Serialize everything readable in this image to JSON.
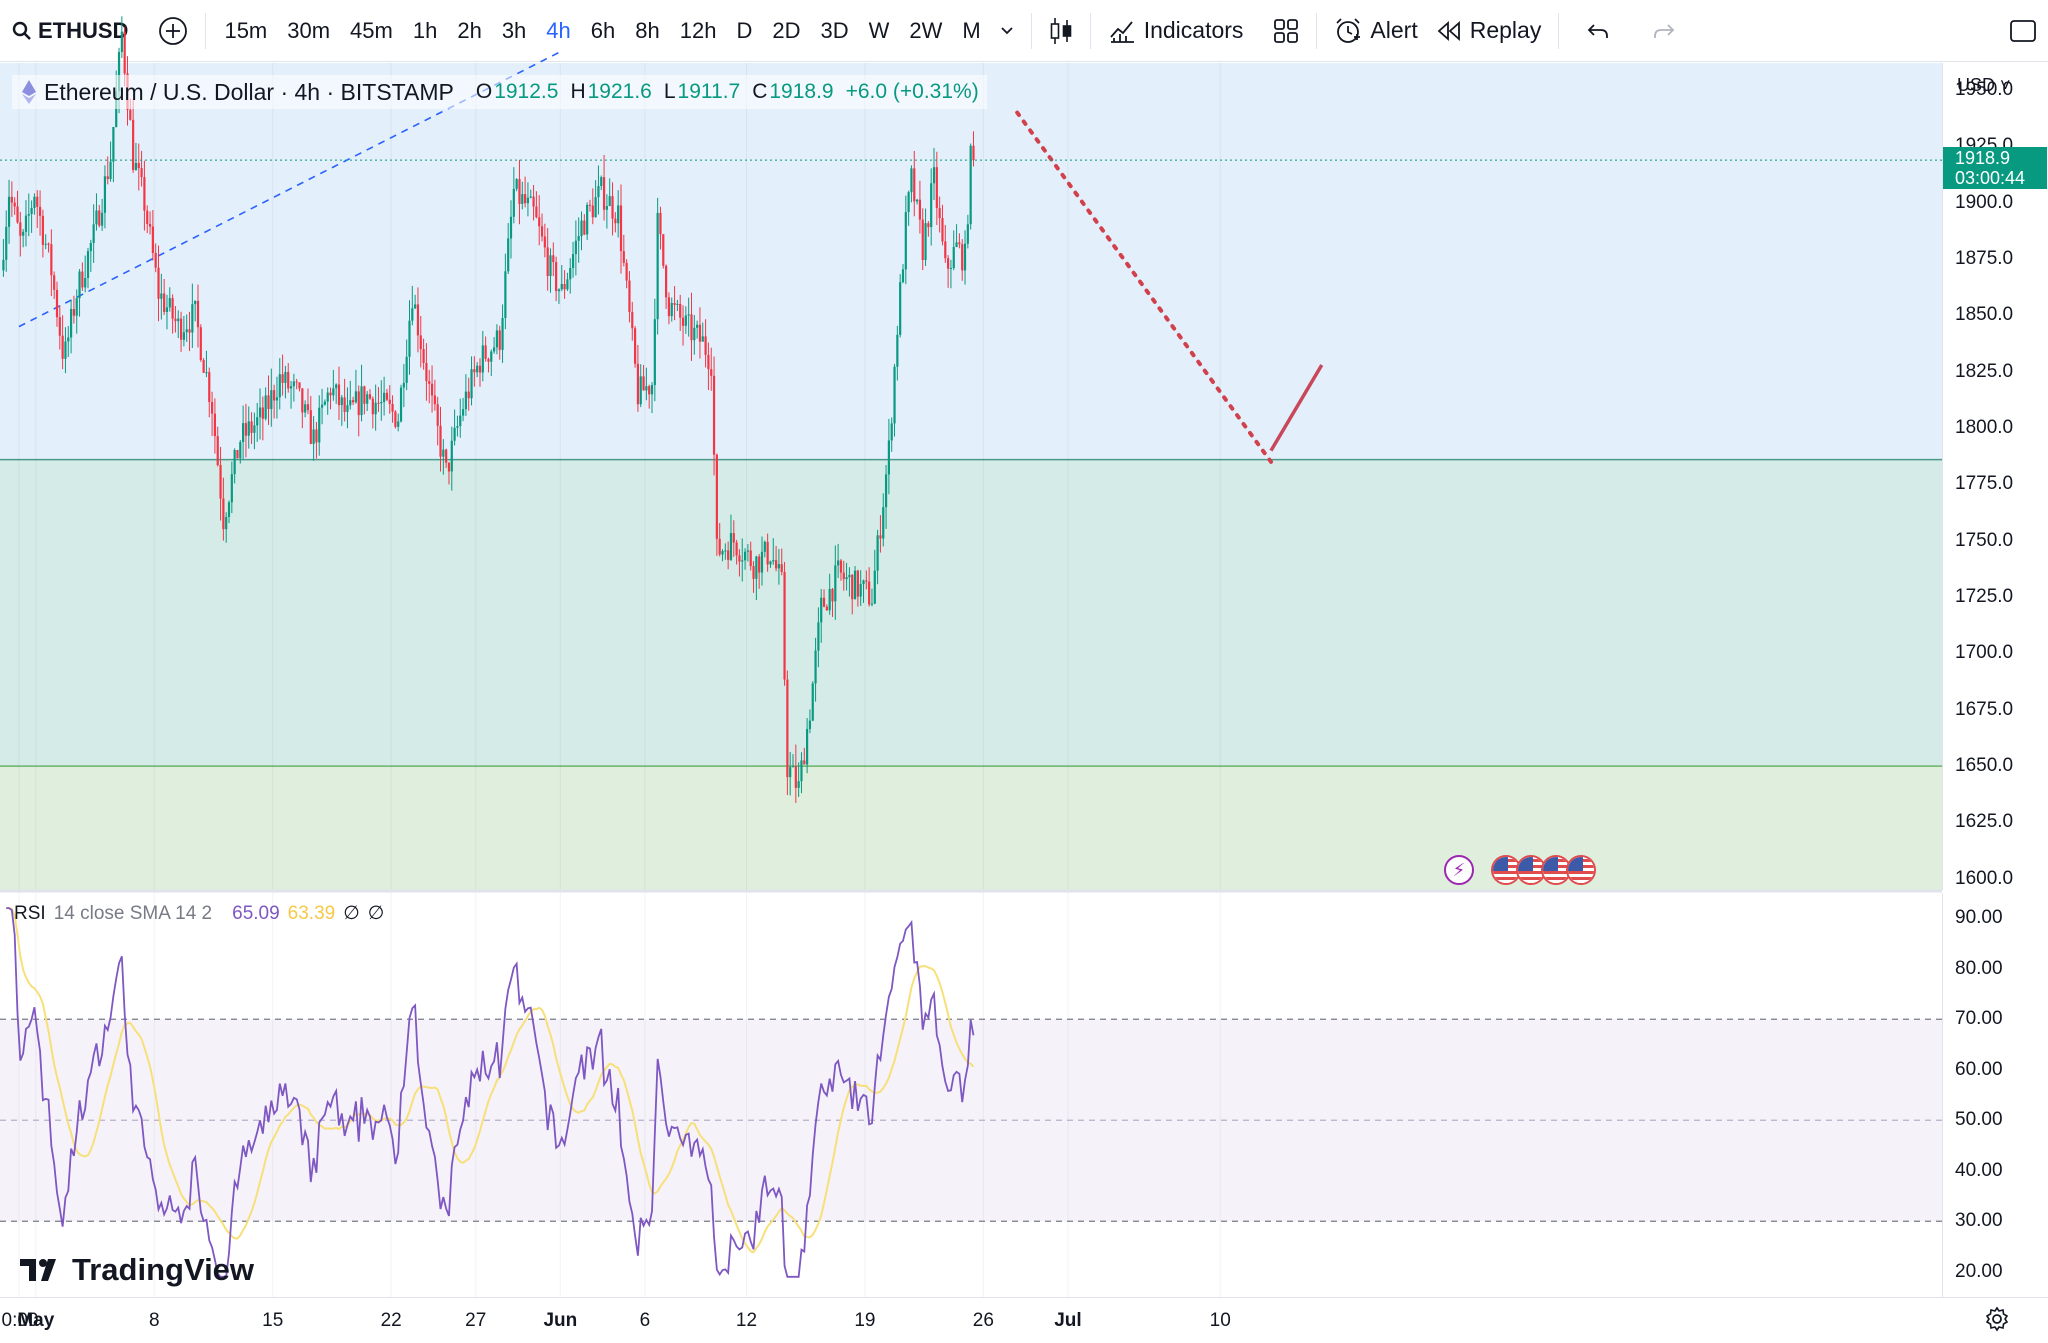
{
  "toolbar": {
    "symbol": "ETHUSD",
    "intervals": [
      {
        "label": "15m",
        "active": false
      },
      {
        "label": "30m",
        "active": false
      },
      {
        "label": "45m",
        "active": false
      },
      {
        "label": "1h",
        "active": false
      },
      {
        "label": "2h",
        "active": false
      },
      {
        "label": "3h",
        "active": false
      },
      {
        "label": "4h",
        "active": true
      },
      {
        "label": "6h",
        "active": false
      },
      {
        "label": "8h",
        "active": false
      },
      {
        "label": "12h",
        "active": false
      },
      {
        "label": "D",
        "active": false
      },
      {
        "label": "2D",
        "active": false
      },
      {
        "label": "3D",
        "active": false
      },
      {
        "label": "W",
        "active": false
      },
      {
        "label": "2W",
        "active": false
      },
      {
        "label": "M",
        "active": false
      }
    ],
    "indicators_label": "Indicators",
    "alert_label": "Alert",
    "replay_label": "Replay"
  },
  "legend": {
    "title": "Ethereum / U.S. Dollar · 4h · BITSTAMP",
    "open_key": "O",
    "open": "1912.5",
    "high_key": "H",
    "high": "1921.6",
    "low_key": "L",
    "low": "1911.7",
    "close_key": "C",
    "close": "1918.9",
    "change": "+6.0 (+0.31%)"
  },
  "price_axis": {
    "currency": "USD",
    "labels": [
      "1950.0",
      "1925.0",
      "1900.0",
      "1875.0",
      "1850.0",
      "1825.0",
      "1800.0",
      "1775.0",
      "1750.0",
      "1725.0",
      "1700.0",
      "1675.0",
      "1650.0",
      "1625.0",
      "1600.0"
    ],
    "last_price": "1918.9",
    "countdown": "03:00:44"
  },
  "rsi": {
    "name": "RSI",
    "params": "14 close SMA 14 2",
    "value": "65.09",
    "sma_value": "63.39",
    "extra1": "∅",
    "extra2": "∅",
    "axis_labels": [
      "90.00",
      "80.00",
      "70.00",
      "60.00",
      "50.00",
      "40.00",
      "30.00",
      "20.00"
    ]
  },
  "time_axis": {
    "labels": [
      {
        "text": "0:00",
        "bold": false
      },
      {
        "text": "May",
        "bold": true
      },
      {
        "text": "8",
        "bold": false
      },
      {
        "text": "15",
        "bold": false
      },
      {
        "text": "22",
        "bold": false
      },
      {
        "text": "27",
        "bold": false
      },
      {
        "text": "Jun",
        "bold": true
      },
      {
        "text": "6",
        "bold": false
      },
      {
        "text": "12",
        "bold": false
      },
      {
        "text": "19",
        "bold": false
      },
      {
        "text": "26",
        "bold": false
      },
      {
        "text": "Jul",
        "bold": true
      },
      {
        "text": "10",
        "bold": false
      }
    ]
  },
  "brand": "TradingView",
  "colors": {
    "up": "#089981",
    "down": "#f23645",
    "zone_blue": "#e3effb",
    "zone_teal": "#d5ebe7",
    "zone_green": "#dfeedd",
    "rsi_line": "#7e57c2",
    "rsi_sma": "#f7e07a"
  },
  "chart_data": {
    "type": "candlestick",
    "symbol": "ETHUSD",
    "exchange": "BITSTAMP",
    "interval": "4h",
    "ylim": [
      1595,
      1962
    ],
    "last_close": 1918.9,
    "zones": [
      {
        "from": 1786,
        "to": 1962,
        "color": "blue"
      },
      {
        "from": 1650,
        "to": 1786,
        "color": "teal"
      },
      {
        "from": 1595,
        "to": 1650,
        "color": "green"
      }
    ],
    "drawings": [
      {
        "type": "dashed-trendline",
        "from": [
          "Apr 30",
          1845
        ],
        "to": [
          "Jun 1",
          1967
        ]
      },
      {
        "type": "dotted-projection",
        "from": [
          "Jun 28",
          1940
        ],
        "to": [
          "Jul 13",
          1785
        ]
      },
      {
        "type": "line",
        "from": [
          "Jul 13",
          1790
        ],
        "to": [
          "Jul 16",
          1828
        ]
      }
    ],
    "rsi": {
      "length": 14,
      "sma_length": 14,
      "ylim": [
        15,
        95
      ],
      "upper_band": 70,
      "middle_band": 50,
      "lower_band": 30,
      "last": 65.09,
      "last_sma": 63.39
    }
  }
}
